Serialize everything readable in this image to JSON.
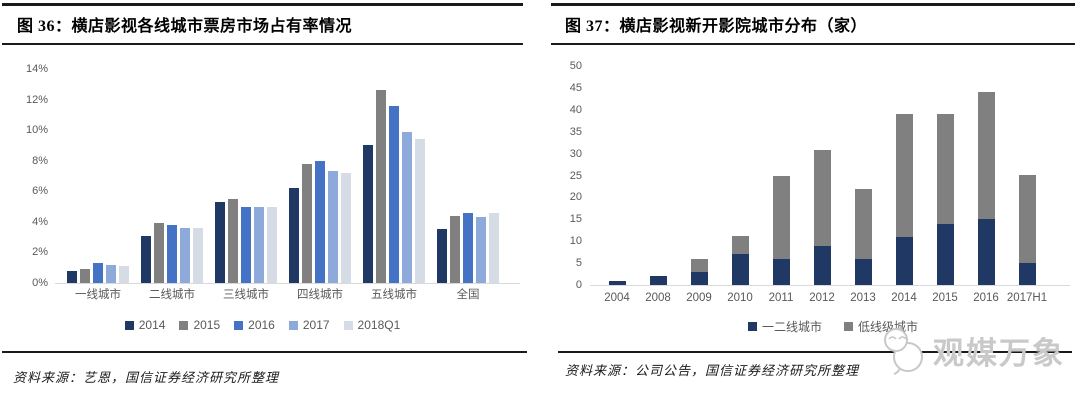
{
  "left_panel": {
    "title": "图 36：横店影视各线城市票房市场占有率情况",
    "source": "资料来源：艺恩，国信证券经济研究所整理"
  },
  "right_panel": {
    "title": "图 37：横店影视新开影院城市分布（家）",
    "source": "资料来源：公司公告，国信证券经济研究所整理"
  },
  "watermark": {
    "text": "观媒万象",
    "icon": "chat-bubbles-face-icon",
    "color": "#C9C9C9"
  },
  "chart_data": [
    {
      "type": "bar",
      "title": "横店影视各线城市票房市场占有率情况",
      "categories": [
        "一线城市",
        "二线城市",
        "三线城市",
        "四线城市",
        "五线城市",
        "全国"
      ],
      "series": [
        {
          "name": "2014",
          "color": "#1F3864",
          "values": [
            0.8,
            3.1,
            5.3,
            6.2,
            9.0,
            3.5
          ]
        },
        {
          "name": "2015",
          "color": "#808080",
          "values": [
            0.9,
            3.9,
            5.5,
            7.8,
            12.6,
            4.4
          ]
        },
        {
          "name": "2016",
          "color": "#4472C4",
          "values": [
            1.3,
            3.8,
            5.0,
            8.0,
            11.6,
            4.6
          ]
        },
        {
          "name": "2017",
          "color": "#8EAADB",
          "values": [
            1.2,
            3.6,
            5.0,
            7.3,
            9.9,
            4.3
          ]
        },
        {
          "name": "2018Q1",
          "color": "#D6DCE5",
          "values": [
            1.1,
            3.6,
            5.0,
            7.2,
            9.4,
            4.6
          ]
        }
      ],
      "y_ticks": [
        "0%",
        "2%",
        "4%",
        "6%",
        "8%",
        "10%",
        "12%",
        "14%"
      ],
      "ylim": [
        0,
        14
      ],
      "grid": false,
      "legend_position": "bottom"
    },
    {
      "type": "stacked-bar",
      "title": "横店影视新开影院城市分布（家）",
      "categories": [
        "2004",
        "2008",
        "2009",
        "2010",
        "2011",
        "2012",
        "2013",
        "2014",
        "2015",
        "2016",
        "2017H1"
      ],
      "series": [
        {
          "name": "一二线城市",
          "color": "#1F3864",
          "values": [
            1,
            2,
            3,
            7,
            6,
            9,
            6,
            11,
            14,
            15,
            5
          ]
        },
        {
          "name": "低线级城市",
          "color": "#808080",
          "values": [
            0,
            0,
            3,
            4,
            19,
            22,
            16,
            28,
            25,
            29,
            20
          ]
        }
      ],
      "y_ticks": [
        "0",
        "5",
        "10",
        "15",
        "20",
        "25",
        "30",
        "35",
        "40",
        "45",
        "50"
      ],
      "ylim": [
        0,
        50
      ],
      "grid": false,
      "legend_position": "bottom"
    }
  ]
}
